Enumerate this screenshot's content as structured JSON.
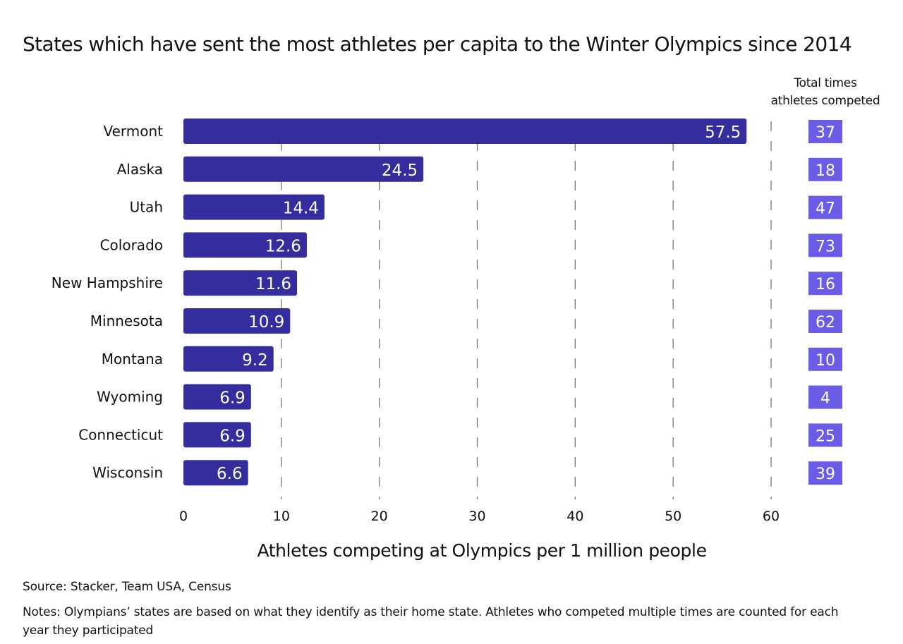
{
  "chart_data": {
    "type": "bar",
    "orientation": "horizontal",
    "title": "States which have sent the most athletes per capita to the Winter Olympics since 2014",
    "xlabel": "Athletes competing at Olympics per 1 million people",
    "ylabel": "",
    "xlim": [
      0,
      60
    ],
    "xticks": [
      0,
      10,
      20,
      30,
      40,
      50,
      60
    ],
    "grid": "vertical dashed",
    "categories": [
      "Vermont",
      "Alaska",
      "Utah",
      "Colorado",
      "New Hampshire",
      "Minnesota",
      "Montana",
      "Wyoming",
      "Connecticut",
      "Wisconsin"
    ],
    "values": [
      57.5,
      24.5,
      14.4,
      12.6,
      11.6,
      10.9,
      9.2,
      6.9,
      6.9,
      6.6
    ],
    "value_labels": [
      "57.5",
      "24.5",
      "14.4",
      "12.6",
      "11.6",
      "10.9",
      "9.2",
      "6.9",
      "6.9",
      "6.6"
    ],
    "side_column": {
      "header": [
        "Total times",
        "athletes competed"
      ],
      "values": [
        37,
        18,
        47,
        73,
        16,
        62,
        10,
        4,
        25,
        39
      ]
    },
    "colors": {
      "bar": "#332d9e",
      "side_box": "#6b5ce7",
      "grid": "#777777"
    }
  },
  "footer": {
    "source": "Source:  Stacker, Team USA, Census",
    "notes": "Notes: Olympians’ states are based on what they identify as their home state. Athletes who competed multiple times are counted for each year they participated"
  }
}
